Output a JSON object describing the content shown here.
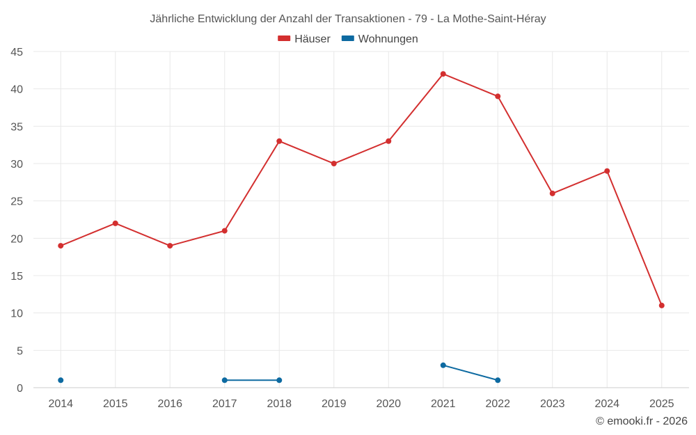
{
  "chart_data": {
    "type": "line",
    "title": "Jährliche Entwicklung der Anzahl der Transaktionen - 79 - La Mothe-Saint-Héray",
    "categories": [
      "2014",
      "2015",
      "2016",
      "2017",
      "2018",
      "2019",
      "2020",
      "2021",
      "2022",
      "2023",
      "2024",
      "2025"
    ],
    "series": [
      {
        "name": "Häuser",
        "color": "#d32f2f",
        "values": [
          19,
          22,
          19,
          21,
          33,
          30,
          33,
          42,
          39,
          26,
          29,
          11
        ]
      },
      {
        "name": "Wohnungen",
        "color": "#0d6aa1",
        "values": [
          1,
          null,
          null,
          1,
          1,
          null,
          null,
          3,
          1,
          null,
          null,
          null
        ]
      }
    ],
    "ylim": [
      0,
      45
    ],
    "yticks": [
      0,
      5,
      10,
      15,
      20,
      25,
      30,
      35,
      40,
      45
    ],
    "grid": true,
    "legend_position": "top-center",
    "xlabel": "",
    "ylabel": ""
  },
  "credit": "© emooki.fr - 2026"
}
